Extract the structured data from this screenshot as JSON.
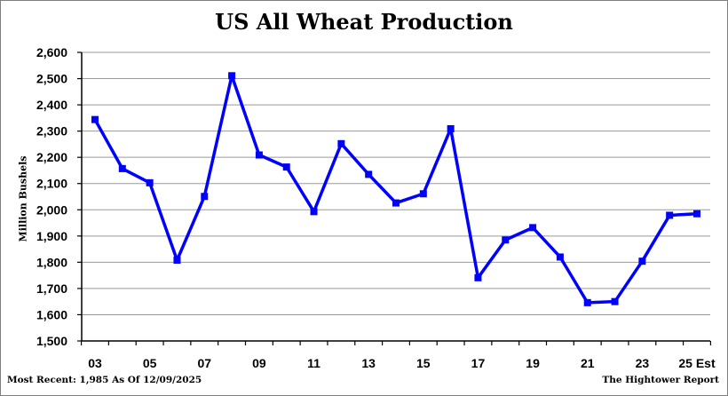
{
  "chart_data": {
    "type": "line",
    "title": "US All Wheat Production",
    "ylabel": "Million Bushels",
    "xlabel": "",
    "ylim": [
      1500,
      2600
    ],
    "yticks": [
      1500,
      1600,
      1700,
      1800,
      1900,
      2000,
      2100,
      2200,
      2300,
      2400,
      2500,
      2600
    ],
    "ytick_labels": [
      "1,500",
      "1,600",
      "1,700",
      "1,800",
      "1,900",
      "2,000",
      "2,100",
      "2,200",
      "2,300",
      "2,400",
      "2,500",
      "2,600"
    ],
    "x": [
      "03",
      "04",
      "05",
      "06",
      "07",
      "08",
      "09",
      "10",
      "11",
      "12",
      "13",
      "14",
      "15",
      "16",
      "17",
      "18",
      "19",
      "20",
      "21",
      "22",
      "23",
      "24",
      "25 Est"
    ],
    "xtick_labels": [
      "03",
      "05",
      "07",
      "09",
      "11",
      "13",
      "15",
      "17",
      "19",
      "21",
      "23",
      "25 Est"
    ],
    "series": [
      {
        "color": "#0000ff",
        "marker": "square",
        "values": [
          2344,
          2157,
          2103,
          1808,
          2051,
          2511,
          2209,
          2163,
          1993,
          2252,
          2135,
          2026,
          2061,
          2309,
          1741,
          1885,
          1932,
          1820,
          1646,
          1650,
          1804,
          1979,
          1985
        ]
      }
    ],
    "grid": true,
    "legend": "none"
  },
  "footer": {
    "left": "Most Recent: 1,985 As Of 12/09/2025",
    "right": "The Hightower Report"
  }
}
